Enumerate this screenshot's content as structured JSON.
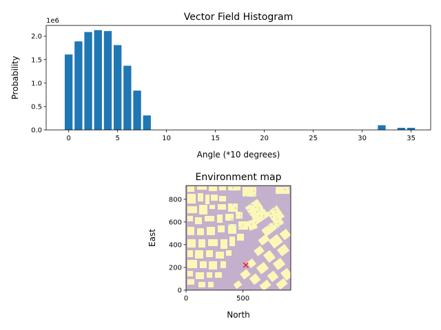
{
  "chart_data": [
    {
      "type": "bar",
      "title": "Vector Field Histogram",
      "xlabel": "Angle (*10 degrees)",
      "ylabel": "Probability",
      "offset_text": "1e6",
      "x_ticks": [
        "0",
        "5",
        "10",
        "15",
        "20",
        "25",
        "30",
        "35"
      ],
      "y_ticks": [
        "0.0",
        "0.5",
        "1.0",
        "1.5",
        "2.0"
      ],
      "xlim": [
        -2.3,
        37
      ],
      "ylim": [
        0,
        2.23
      ],
      "y_unit": 1000000,
      "grid": false,
      "color": "#1f77b4",
      "x": [
        0,
        1,
        2,
        3,
        4,
        5,
        6,
        7,
        8,
        32,
        34,
        35
      ],
      "values": [
        1.61,
        1.89,
        2.09,
        2.13,
        2.11,
        1.81,
        1.37,
        0.84,
        0.31,
        0.1,
        0.045,
        0.045
      ]
    },
    {
      "type": "heatmap",
      "title": "Environment map",
      "xlabel": "North",
      "ylabel": "East",
      "x_ticks": [
        "0",
        "500"
      ],
      "y_ticks": [
        "0",
        "200",
        "400",
        "600",
        "800"
      ],
      "xlim": [
        0,
        920
      ],
      "ylim": [
        0,
        920
      ],
      "colors": {
        "free": "#c4b0cd",
        "obstacle": "#fdf7b7",
        "vegetation": "#a8c8d2"
      },
      "marker": {
        "symbol": "x",
        "color": "#ff0000",
        "x": 525,
        "y": 220
      }
    }
  ]
}
